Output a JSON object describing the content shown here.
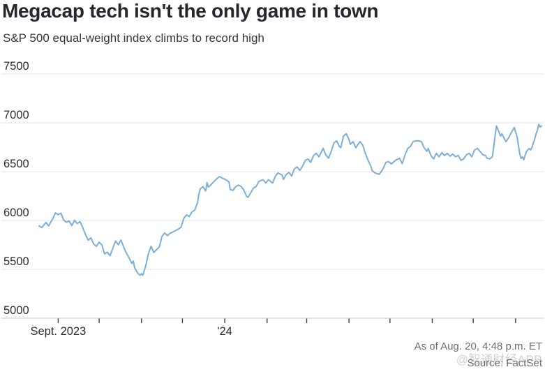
{
  "header": {
    "title": "Megacap tech isn't the only game in town",
    "subtitle": "S&P 500 equal-weight index climbs to record high"
  },
  "footer": {
    "as_of": "As of Aug. 20, 4:48 p.m. ET",
    "source": "Source: FactSet",
    "watermark": "@智通财经APP"
  },
  "chart_data": {
    "type": "line",
    "title": "Megacap tech isn't the only game in town",
    "subtitle": "S&P 500 equal-weight index climbs to record high",
    "legend": "none",
    "grid": "horizontal",
    "y_axis": {
      "min": 5000,
      "max": 7500,
      "ticks": [
        5000,
        5500,
        6000,
        6500,
        7000,
        7500
      ]
    },
    "x_axis": {
      "start": "2023-08-18",
      "end": "2024-08-20",
      "month_ticks": [
        "2023-09-01",
        "2023-10-01",
        "2023-11-01",
        "2023-12-01",
        "2024-01-01",
        "2024-02-01",
        "2024-03-01",
        "2024-04-01",
        "2024-05-01",
        "2024-06-01",
        "2024-07-01",
        "2024-08-01"
      ],
      "labels": [
        {
          "text": "Sept. 2023",
          "date": "2023-09-01"
        },
        {
          "text": "'24",
          "date": "2024-01-01"
        }
      ]
    },
    "colors": {
      "line": "#7CAFD8",
      "grid": "#e3e4e5",
      "axis": "#c9cbcd",
      "tick": "#3a3c3e",
      "label": "#2b2d30"
    },
    "series": [
      {
        "name": "S&P 500 equal-weight index",
        "points": [
          [
            "2023-08-18",
            5945
          ],
          [
            "2023-08-20",
            5928
          ],
          [
            "2023-08-23",
            5980
          ],
          [
            "2023-08-25",
            5945
          ],
          [
            "2023-08-28",
            6018
          ],
          [
            "2023-08-30",
            6078
          ],
          [
            "2023-09-01",
            6060
          ],
          [
            "2023-09-03",
            6075
          ],
          [
            "2023-09-05",
            6005
          ],
          [
            "2023-09-07",
            5982
          ],
          [
            "2023-09-09",
            5996
          ],
          [
            "2023-09-11",
            5948
          ],
          [
            "2023-09-13",
            6002
          ],
          [
            "2023-09-15",
            5968
          ],
          [
            "2023-09-17",
            5988
          ],
          [
            "2023-09-19",
            5928
          ],
          [
            "2023-09-21",
            5856
          ],
          [
            "2023-09-23",
            5798
          ],
          [
            "2023-09-25",
            5822
          ],
          [
            "2023-09-27",
            5758
          ],
          [
            "2023-09-29",
            5735
          ],
          [
            "2023-10-01",
            5778
          ],
          [
            "2023-10-03",
            5750
          ],
          [
            "2023-10-05",
            5658
          ],
          [
            "2023-10-07",
            5676
          ],
          [
            "2023-10-09",
            5640
          ],
          [
            "2023-10-11",
            5716
          ],
          [
            "2023-10-13",
            5790
          ],
          [
            "2023-10-15",
            5752
          ],
          [
            "2023-10-17",
            5800
          ],
          [
            "2023-10-19",
            5726
          ],
          [
            "2023-10-21",
            5666
          ],
          [
            "2023-10-23",
            5616
          ],
          [
            "2023-10-25",
            5560
          ],
          [
            "2023-10-26",
            5584
          ],
          [
            "2023-10-27",
            5516
          ],
          [
            "2023-10-29",
            5466
          ],
          [
            "2023-10-31",
            5438
          ],
          [
            "2023-11-01",
            5456
          ],
          [
            "2023-11-02",
            5440
          ],
          [
            "2023-11-04",
            5530
          ],
          [
            "2023-11-06",
            5656
          ],
          [
            "2023-11-08",
            5736
          ],
          [
            "2023-11-09",
            5704
          ],
          [
            "2023-11-10",
            5672
          ],
          [
            "2023-11-12",
            5700
          ],
          [
            "2023-11-14",
            5728
          ],
          [
            "2023-11-15",
            5778
          ],
          [
            "2023-11-16",
            5838
          ],
          [
            "2023-11-18",
            5872
          ],
          [
            "2023-11-20",
            5846
          ],
          [
            "2023-11-22",
            5870
          ],
          [
            "2023-11-24",
            5882
          ],
          [
            "2023-11-26",
            5898
          ],
          [
            "2023-11-28",
            5912
          ],
          [
            "2023-11-30",
            5932
          ],
          [
            "2023-12-02",
            6022
          ],
          [
            "2023-12-04",
            6058
          ],
          [
            "2023-12-06",
            6040
          ],
          [
            "2023-12-08",
            6088
          ],
          [
            "2023-12-10",
            6106
          ],
          [
            "2023-12-12",
            6180
          ],
          [
            "2023-12-13",
            6265
          ],
          [
            "2023-12-14",
            6322
          ],
          [
            "2023-12-16",
            6348
          ],
          [
            "2023-12-18",
            6302
          ],
          [
            "2023-12-19",
            6388
          ],
          [
            "2023-12-20",
            6342
          ],
          [
            "2023-12-22",
            6368
          ],
          [
            "2023-12-24",
            6398
          ],
          [
            "2023-12-26",
            6425
          ],
          [
            "2023-12-28",
            6450
          ],
          [
            "2023-12-30",
            6436
          ],
          [
            "2024-01-02",
            6416
          ],
          [
            "2024-01-04",
            6395
          ],
          [
            "2024-01-05",
            6318
          ],
          [
            "2024-01-07",
            6308
          ],
          [
            "2024-01-09",
            6346
          ],
          [
            "2024-01-11",
            6362
          ],
          [
            "2024-01-13",
            6348
          ],
          [
            "2024-01-15",
            6310
          ],
          [
            "2024-01-17",
            6246
          ],
          [
            "2024-01-18",
            6238
          ],
          [
            "2024-01-20",
            6282
          ],
          [
            "2024-01-22",
            6332
          ],
          [
            "2024-01-24",
            6348
          ],
          [
            "2024-01-26",
            6400
          ],
          [
            "2024-01-29",
            6418
          ],
          [
            "2024-01-31",
            6384
          ],
          [
            "2024-02-02",
            6418
          ],
          [
            "2024-02-05",
            6382
          ],
          [
            "2024-02-07",
            6452
          ],
          [
            "2024-02-09",
            6488
          ],
          [
            "2024-02-12",
            6465
          ],
          [
            "2024-02-13",
            6420
          ],
          [
            "2024-02-15",
            6470
          ],
          [
            "2024-02-17",
            6492
          ],
          [
            "2024-02-19",
            6455
          ],
          [
            "2024-02-21",
            6530
          ],
          [
            "2024-02-23",
            6548
          ],
          [
            "2024-02-25",
            6512
          ],
          [
            "2024-02-27",
            6558
          ],
          [
            "2024-02-29",
            6615
          ],
          [
            "2024-03-02",
            6630
          ],
          [
            "2024-03-04",
            6596
          ],
          [
            "2024-03-06",
            6665
          ],
          [
            "2024-03-08",
            6688
          ],
          [
            "2024-03-10",
            6652
          ],
          [
            "2024-03-12",
            6708
          ],
          [
            "2024-03-13",
            6738
          ],
          [
            "2024-03-15",
            6672
          ],
          [
            "2024-03-17",
            6638
          ],
          [
            "2024-03-19",
            6708
          ],
          [
            "2024-03-21",
            6795
          ],
          [
            "2024-03-23",
            6815
          ],
          [
            "2024-03-25",
            6758
          ],
          [
            "2024-03-26",
            6745
          ],
          [
            "2024-03-28",
            6865
          ],
          [
            "2024-03-30",
            6888
          ],
          [
            "2024-04-01",
            6830
          ],
          [
            "2024-04-02",
            6780
          ],
          [
            "2024-04-04",
            6808
          ],
          [
            "2024-04-06",
            6745
          ],
          [
            "2024-04-09",
            6808
          ],
          [
            "2024-04-11",
            6772
          ],
          [
            "2024-04-13",
            6688
          ],
          [
            "2024-04-15",
            6616
          ],
          [
            "2024-04-17",
            6558
          ],
          [
            "2024-04-18",
            6508
          ],
          [
            "2024-04-20",
            6488
          ],
          [
            "2024-04-23",
            6472
          ],
          [
            "2024-04-24",
            6488
          ],
          [
            "2024-04-26",
            6530
          ],
          [
            "2024-04-28",
            6595
          ],
          [
            "2024-04-30",
            6602
          ],
          [
            "2024-05-02",
            6580
          ],
          [
            "2024-05-05",
            6616
          ],
          [
            "2024-05-08",
            6638
          ],
          [
            "2024-05-10",
            6582
          ],
          [
            "2024-05-12",
            6668
          ],
          [
            "2024-05-14",
            6738
          ],
          [
            "2024-05-16",
            6758
          ],
          [
            "2024-05-18",
            6808
          ],
          [
            "2024-05-20",
            6816
          ],
          [
            "2024-05-22",
            6815
          ],
          [
            "2024-05-24",
            6808
          ],
          [
            "2024-05-26",
            6745
          ],
          [
            "2024-05-28",
            6708
          ],
          [
            "2024-05-29",
            6738
          ],
          [
            "2024-05-31",
            6665
          ],
          [
            "2024-06-02",
            6630
          ],
          [
            "2024-06-04",
            6688
          ],
          [
            "2024-06-06",
            6652
          ],
          [
            "2024-06-08",
            6695
          ],
          [
            "2024-06-10",
            6665
          ],
          [
            "2024-06-12",
            6688
          ],
          [
            "2024-06-14",
            6658
          ],
          [
            "2024-06-16",
            6680
          ],
          [
            "2024-06-18",
            6652
          ],
          [
            "2024-06-20",
            6665
          ],
          [
            "2024-06-22",
            6616
          ],
          [
            "2024-06-24",
            6630
          ],
          [
            "2024-06-26",
            6672
          ],
          [
            "2024-06-28",
            6688
          ],
          [
            "2024-06-30",
            6652
          ],
          [
            "2024-07-02",
            6722
          ],
          [
            "2024-07-04",
            6738
          ],
          [
            "2024-07-06",
            6708
          ],
          [
            "2024-07-08",
            6672
          ],
          [
            "2024-07-10",
            6665
          ],
          [
            "2024-07-11",
            6638
          ],
          [
            "2024-07-13",
            6630
          ],
          [
            "2024-07-15",
            6652
          ],
          [
            "2024-07-16",
            6758
          ],
          [
            "2024-07-17",
            6865
          ],
          [
            "2024-07-18",
            6968
          ],
          [
            "2024-07-20",
            6902
          ],
          [
            "2024-07-21",
            6865
          ],
          [
            "2024-07-22",
            6888
          ],
          [
            "2024-07-24",
            6830
          ],
          [
            "2024-07-25",
            6808
          ],
          [
            "2024-07-27",
            6848
          ],
          [
            "2024-07-29",
            6902
          ],
          [
            "2024-07-31",
            6952
          ],
          [
            "2024-08-02",
            6865
          ],
          [
            "2024-08-03",
            6780
          ],
          [
            "2024-08-04",
            6688
          ],
          [
            "2024-08-05",
            6635
          ],
          [
            "2024-08-06",
            6652
          ],
          [
            "2024-08-07",
            6622
          ],
          [
            "2024-08-08",
            6668
          ],
          [
            "2024-08-09",
            6708
          ],
          [
            "2024-08-11",
            6738
          ],
          [
            "2024-08-12",
            6722
          ],
          [
            "2024-08-13",
            6745
          ],
          [
            "2024-08-14",
            6795
          ],
          [
            "2024-08-15",
            6832
          ],
          [
            "2024-08-16",
            6888
          ],
          [
            "2024-08-17",
            6922
          ],
          [
            "2024-08-18",
            6985
          ],
          [
            "2024-08-19",
            6958
          ],
          [
            "2024-08-20",
            6968
          ]
        ]
      }
    ]
  }
}
